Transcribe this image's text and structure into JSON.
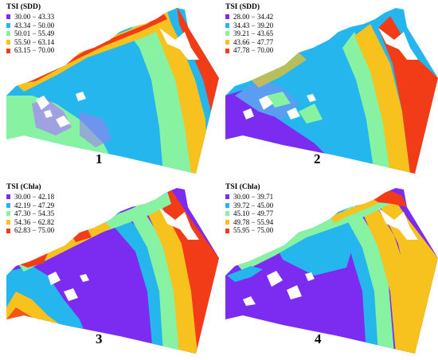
{
  "colors": {
    "class1": "#7b2cf0",
    "class2": "#25b6ee",
    "class3": "#86f2a2",
    "class4": "#f7c21d",
    "class5": "#f23b17",
    "blue_shade": "#5a9df2",
    "land": "#ffffff"
  },
  "panels": [
    {
      "number": "1",
      "legend_title": "TSI (SDD)",
      "legend": [
        {
          "label": "30.00 − 43.33",
          "color": "#7b2cf0"
        },
        {
          "label": "43.34 − 50.00",
          "color": "#25b6ee"
        },
        {
          "label": "50.01 − 55.49",
          "color": "#86f2a2"
        },
        {
          "label": "55.50 − 63.14",
          "color": "#f7c21d"
        },
        {
          "label": "63.15 − 70.00",
          "color": "#f23b17"
        }
      ]
    },
    {
      "number": "2",
      "legend_title": "TSI (SDD)",
      "legend": [
        {
          "label": "28.00 − 34.42",
          "color": "#7b2cf0"
        },
        {
          "label": "34.43 − 39.20",
          "color": "#25b6ee"
        },
        {
          "label": "39.21 − 43.65",
          "color": "#86f2a2"
        },
        {
          "label": "43.66 − 47.77",
          "color": "#f7c21d"
        },
        {
          "label": "47.78 − 70.00",
          "color": "#f23b17"
        }
      ]
    },
    {
      "number": "3",
      "legend_title": "TSI (Chla)",
      "legend": [
        {
          "label": "30.00 − 42.18",
          "color": "#7b2cf0"
        },
        {
          "label": "42.19 − 47.29",
          "color": "#25b6ee"
        },
        {
          "label": "47.30 − 54.35",
          "color": "#86f2a2"
        },
        {
          "label": "54.36 − 62.82",
          "color": "#f7c21d"
        },
        {
          "label": "62.83 − 75.00",
          "color": "#f23b17"
        }
      ]
    },
    {
      "number": "4",
      "legend_title": "TSI (Chla)",
      "legend": [
        {
          "label": "30.00 − 39.71",
          "color": "#7b2cf0"
        },
        {
          "label": "39.72 − 45.00",
          "color": "#25b6ee"
        },
        {
          "label": "45.10 − 49.77",
          "color": "#86f2a2"
        },
        {
          "label": "49.78 − 55.94",
          "color": "#f7c21d"
        },
        {
          "label": "55.95 − 75.00",
          "color": "#f23b17"
        }
      ]
    }
  ]
}
